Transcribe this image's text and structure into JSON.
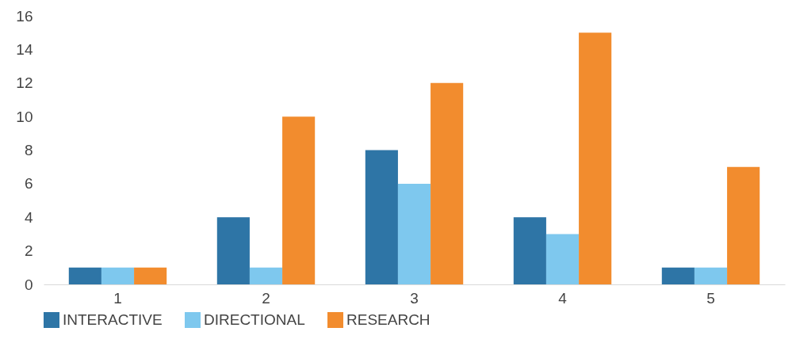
{
  "chart_data": {
    "type": "bar",
    "categories": [
      "1",
      "2",
      "3",
      "4",
      "5"
    ],
    "series": [
      {
        "name": "INTERACTIVE",
        "color": "#2e75a6",
        "values": [
          1,
          4,
          8,
          4,
          1
        ]
      },
      {
        "name": "DIRECTIONAL",
        "color": "#7ec8ee",
        "values": [
          1,
          1,
          6,
          3,
          1
        ]
      },
      {
        "name": "RESEARCH",
        "color": "#f28c2e",
        "values": [
          1,
          10,
          12,
          15,
          7
        ]
      }
    ],
    "ylim": [
      0,
      16
    ],
    "yticks": [
      0,
      2,
      4,
      6,
      8,
      10,
      12,
      14,
      16
    ],
    "grid": false,
    "legend": "bottom"
  }
}
